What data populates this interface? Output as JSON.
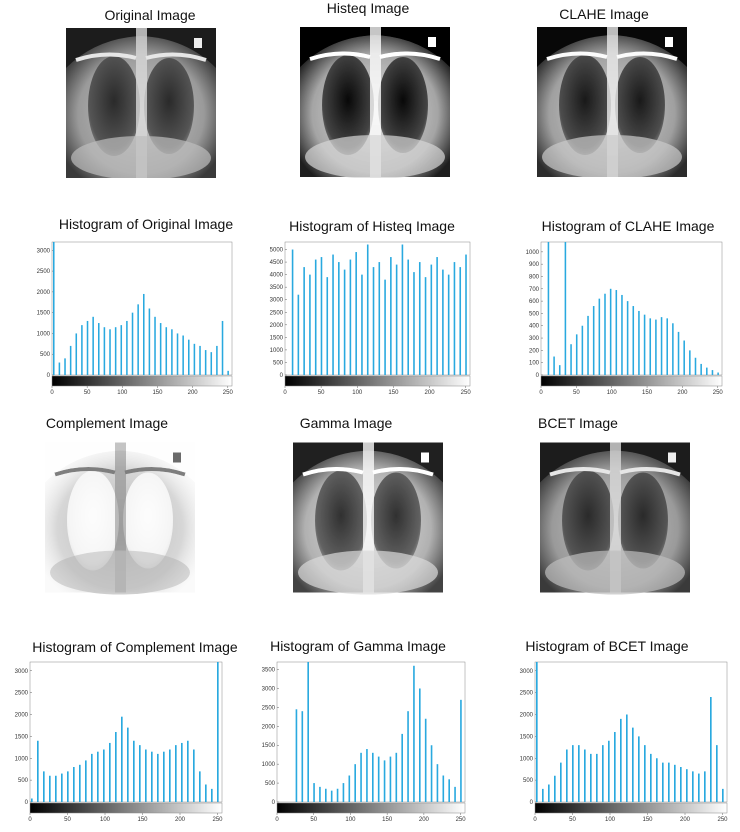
{
  "images": [
    {
      "title": "Original Image"
    },
    {
      "title": "Histeq Image"
    },
    {
      "title": "CLAHE Image"
    },
    {
      "title": "Complement Image"
    },
    {
      "title": "Gamma Image"
    },
    {
      "title": "BCET Image"
    }
  ],
  "chart_data": [
    {
      "type": "bar",
      "title": "Histogram of Original Image",
      "color": "#29a9df",
      "x": [
        0,
        8,
        16,
        24,
        32,
        40,
        48,
        56,
        64,
        72,
        80,
        88,
        96,
        104,
        112,
        120,
        128,
        136,
        144,
        152,
        160,
        168,
        176,
        184,
        192,
        200,
        208,
        216,
        224,
        232,
        240,
        248
      ],
      "values": [
        3200,
        300,
        400,
        700,
        1000,
        1200,
        1300,
        1400,
        1250,
        1150,
        1100,
        1150,
        1200,
        1300,
        1500,
        1700,
        1950,
        1600,
        1400,
        1250,
        1150,
        1100,
        1000,
        950,
        850,
        750,
        700,
        600,
        550,
        700,
        1300,
        100
      ],
      "xlim": [
        0,
        256
      ],
      "xticks": [
        0,
        50,
        100,
        150,
        200,
        250
      ],
      "ylim": [
        0,
        3200
      ],
      "yticks": [
        0,
        500,
        1000,
        1500,
        2000,
        2500,
        3000
      ]
    },
    {
      "type": "bar",
      "title": "Histogram of Histeq Image",
      "color": "#29a9df",
      "x": [
        0,
        8,
        16,
        24,
        32,
        40,
        48,
        56,
        64,
        72,
        80,
        88,
        96,
        104,
        112,
        120,
        128,
        136,
        144,
        152,
        160,
        168,
        176,
        184,
        192,
        200,
        208,
        216,
        224,
        232,
        240,
        248
      ],
      "values": [
        0,
        5000,
        3200,
        4300,
        4000,
        4600,
        4700,
        3900,
        4800,
        4500,
        4200,
        4600,
        4900,
        4000,
        5200,
        4300,
        4500,
        3800,
        4700,
        4400,
        5200,
        4600,
        4100,
        4500,
        3900,
        4400,
        4700,
        4200,
        4000,
        4500,
        4300,
        4800
      ],
      "xlim": [
        0,
        256
      ],
      "xticks": [
        0,
        50,
        100,
        150,
        200,
        250
      ],
      "ylim": [
        0,
        5300
      ],
      "yticks": [
        0,
        500,
        1000,
        1500,
        2000,
        2500,
        3000,
        3500,
        4000,
        4500,
        5000
      ]
    },
    {
      "type": "bar",
      "title": "Histogram of CLAHE Image",
      "color": "#29a9df",
      "x": [
        0,
        8,
        16,
        24,
        32,
        40,
        48,
        56,
        64,
        72,
        80,
        88,
        96,
        104,
        112,
        120,
        128,
        136,
        144,
        152,
        160,
        168,
        176,
        184,
        192,
        200,
        208,
        216,
        224,
        232,
        240,
        248
      ],
      "values": [
        0,
        1080,
        150,
        80,
        1080,
        250,
        330,
        400,
        480,
        560,
        620,
        660,
        700,
        690,
        650,
        600,
        560,
        520,
        490,
        460,
        450,
        470,
        460,
        420,
        350,
        280,
        200,
        140,
        90,
        60,
        40,
        20
      ],
      "xlim": [
        0,
        256
      ],
      "xticks": [
        0,
        50,
        100,
        150,
        200,
        250
      ],
      "ylim": [
        0,
        1080
      ],
      "yticks": [
        0,
        100,
        200,
        300,
        400,
        500,
        600,
        700,
        800,
        900,
        1000
      ]
    },
    {
      "type": "bar",
      "title": "Histogram of Complement Image",
      "color": "#29a9df",
      "x": [
        0,
        8,
        16,
        24,
        32,
        40,
        48,
        56,
        64,
        72,
        80,
        88,
        96,
        104,
        112,
        120,
        128,
        136,
        144,
        152,
        160,
        168,
        176,
        184,
        192,
        200,
        208,
        216,
        224,
        232,
        240,
        248
      ],
      "values": [
        80,
        1400,
        700,
        600,
        600,
        650,
        700,
        800,
        850,
        950,
        1100,
        1150,
        1200,
        1350,
        1600,
        1950,
        1700,
        1400,
        1300,
        1200,
        1150,
        1100,
        1150,
        1200,
        1300,
        1350,
        1400,
        1200,
        700,
        400,
        300,
        3200
      ],
      "xlim": [
        0,
        256
      ],
      "xticks": [
        0,
        50,
        100,
        150,
        200,
        250
      ],
      "ylim": [
        0,
        3200
      ],
      "yticks": [
        0,
        500,
        1000,
        1500,
        2000,
        2500,
        3000
      ]
    },
    {
      "type": "bar",
      "title": "Histogram of Gamma Image",
      "color": "#29a9df",
      "x": [
        0,
        8,
        16,
        24,
        32,
        40,
        48,
        56,
        64,
        72,
        80,
        88,
        96,
        104,
        112,
        120,
        128,
        136,
        144,
        152,
        160,
        168,
        176,
        184,
        192,
        200,
        208,
        216,
        224,
        232,
        240,
        248
      ],
      "values": [
        0,
        0,
        0,
        2450,
        2400,
        3700,
        500,
        400,
        350,
        300,
        350,
        500,
        700,
        1000,
        1300,
        1400,
        1300,
        1200,
        1100,
        1200,
        1300,
        1800,
        2400,
        3600,
        3000,
        2200,
        1500,
        1000,
        700,
        600,
        400,
        2700
      ],
      "xlim": [
        0,
        256
      ],
      "xticks": [
        0,
        50,
        100,
        150,
        200,
        250
      ],
      "ylim": [
        0,
        3700
      ],
      "yticks": [
        0,
        500,
        1000,
        1500,
        2000,
        2500,
        3000,
        3500
      ]
    },
    {
      "type": "bar",
      "title": "Histogram of BCET Image",
      "color": "#29a9df",
      "x": [
        0,
        8,
        16,
        24,
        32,
        40,
        48,
        56,
        64,
        72,
        80,
        88,
        96,
        104,
        112,
        120,
        128,
        136,
        144,
        152,
        160,
        168,
        176,
        184,
        192,
        200,
        208,
        216,
        224,
        232,
        240,
        248
      ],
      "values": [
        3200,
        300,
        400,
        600,
        900,
        1200,
        1300,
        1300,
        1200,
        1100,
        1100,
        1300,
        1400,
        1600,
        1900,
        2000,
        1700,
        1500,
        1300,
        1100,
        1000,
        900,
        900,
        850,
        800,
        750,
        700,
        650,
        700,
        2400,
        1300,
        300
      ],
      "xlim": [
        0,
        256
      ],
      "xticks": [
        0,
        50,
        100,
        150,
        200,
        250
      ],
      "ylim": [
        0,
        3200
      ],
      "yticks": [
        0,
        500,
        1000,
        1500,
        2000,
        2500,
        3000
      ]
    }
  ]
}
